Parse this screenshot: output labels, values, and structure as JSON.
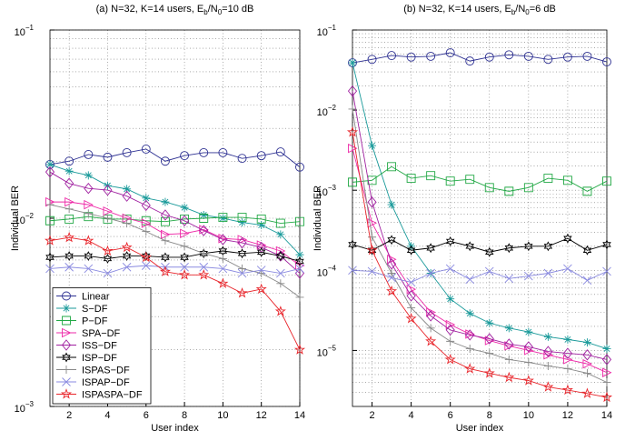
{
  "chart_data": [
    {
      "type": "line",
      "title": [
        "(a) N=32, K=14 users, E",
        "b",
        "/N",
        "0",
        "=10 dB"
      ],
      "xlabel": "User index",
      "ylabel": "Individual BER",
      "yscale": "log",
      "grid": true,
      "minor_grid": true,
      "legend": "lower left",
      "x": [
        1,
        2,
        3,
        4,
        5,
        6,
        7,
        8,
        9,
        10,
        11,
        12,
        13,
        14
      ],
      "xlim": [
        1,
        14
      ],
      "xticks": [
        2,
        4,
        6,
        8,
        10,
        12,
        14
      ],
      "ylim": [
        0.001,
        0.1
      ],
      "yticks": [
        {
          "value": 0.001,
          "label": "10",
          "exponent": "−3"
        },
        {
          "value": 0.01,
          "label": "10",
          "exponent": "−2"
        },
        {
          "value": 0.1,
          "label": "10",
          "exponent": "−1"
        }
      ],
      "series": [
        {
          "name": "Linear",
          "color": "#2e3192",
          "marker": "o",
          "values": [
            0.0193,
            0.0201,
            0.0218,
            0.0211,
            0.0223,
            0.0233,
            0.0201,
            0.0215,
            0.0223,
            0.0223,
            0.0208,
            0.0215,
            0.0225,
            0.0187
          ]
        },
        {
          "name": "S−DF",
          "color": "#1a9a9a",
          "marker": "*",
          "values": [
            0.0193,
            0.0178,
            0.0169,
            0.0149,
            0.0143,
            0.0128,
            0.0122,
            0.0114,
            0.0104,
            0.01,
            0.0095,
            0.0092,
            0.0082,
            0.0064
          ]
        },
        {
          "name": "P−DF",
          "color": "#22a845",
          "marker": "s",
          "values": [
            0.0097,
            0.0099,
            0.0102,
            0.0099,
            0.0099,
            0.0097,
            0.0096,
            0.0099,
            0.01,
            0.0101,
            0.0101,
            0.0099,
            0.0094,
            0.0096
          ]
        },
        {
          "name": "SPA−DF",
          "color": "#ee2aa8",
          "marker": ">",
          "values": [
            0.0122,
            0.0122,
            0.0118,
            0.0109,
            0.01,
            0.0094,
            0.0082,
            0.0083,
            0.0087,
            0.0078,
            0.0077,
            0.0072,
            0.0067,
            0.0056
          ]
        },
        {
          "name": "ISS−DF",
          "color": "#a020a0",
          "marker": "d",
          "values": [
            0.0176,
            0.0153,
            0.0144,
            0.0141,
            0.0131,
            0.0117,
            0.0104,
            0.0097,
            0.0086,
            0.0077,
            0.0074,
            0.007,
            0.0063,
            0.0051
          ]
        },
        {
          "name": "ISP−DF",
          "color": "#000000",
          "marker": "h",
          "values": [
            0.0062,
            0.0063,
            0.0063,
            0.0061,
            0.0063,
            0.0063,
            0.0062,
            0.0062,
            0.0065,
            0.0067,
            0.0065,
            0.0066,
            0.0063,
            0.0059
          ]
        },
        {
          "name": "ISPAS−DF",
          "color": "#888888",
          "marker": "+",
          "values": [
            0.0118,
            0.0112,
            0.0106,
            0.01,
            0.0094,
            0.0085,
            0.0076,
            0.0071,
            0.0065,
            0.0061,
            0.0054,
            0.0051,
            0.0045,
            0.0038
          ]
        },
        {
          "name": "ISPAP−DF",
          "color": "#8a8ae0",
          "marker": "x",
          "values": [
            0.0054,
            0.0055,
            0.0054,
            0.0051,
            0.0055,
            0.0056,
            0.0055,
            0.0055,
            0.0055,
            0.0054,
            0.0051,
            0.0053,
            0.0051,
            0.0054
          ]
        },
        {
          "name": "ISPASPA−DF",
          "color": "#e8242a",
          "marker": "p",
          "values": [
            0.0076,
            0.0079,
            0.0076,
            0.0067,
            0.007,
            0.0062,
            0.0052,
            0.005,
            0.005,
            0.0045,
            0.004,
            0.0042,
            0.0032,
            0.002
          ]
        }
      ]
    },
    {
      "type": "line",
      "title": [
        "(b) N=32, K=14 users, E",
        "b",
        "/N",
        "0",
        "=6 dB"
      ],
      "xlabel": "User index",
      "ylabel": "Individual BER",
      "yscale": "log",
      "grid": true,
      "minor_grid": true,
      "x": [
        1,
        2,
        3,
        4,
        5,
        6,
        7,
        8,
        9,
        10,
        11,
        12,
        13,
        14
      ],
      "xlim": [
        1,
        14
      ],
      "xticks": [
        2,
        4,
        6,
        8,
        10,
        12,
        14
      ],
      "ylim": [
        2e-06,
        0.1
      ],
      "yticks": [
        {
          "value": 1e-05,
          "label": "10",
          "exponent": "−5"
        },
        {
          "value": 0.0001,
          "label": "10",
          "exponent": "−4"
        },
        {
          "value": 0.001,
          "label": "10",
          "exponent": "−3"
        },
        {
          "value": 0.01,
          "label": "10",
          "exponent": "−2"
        },
        {
          "value": 0.1,
          "label": "10",
          "exponent": "−1"
        }
      ],
      "series": [
        {
          "color": "#2e3192",
          "marker": "o",
          "values": [
            0.039,
            0.043,
            0.048,
            0.046,
            0.047,
            0.052,
            0.041,
            0.046,
            0.049,
            0.047,
            0.043,
            0.046,
            0.047,
            0.04
          ]
        },
        {
          "color": "#1a9a9a",
          "marker": "*",
          "values": [
            0.039,
            0.0036,
            0.00066,
            0.0002,
            9.2e-05,
            4.4e-05,
            2.9e-05,
            2.2e-05,
            1.9e-05,
            1.7e-05,
            1.48e-05,
            1.37e-05,
            1.26e-05,
            1.05e-05
          ]
        },
        {
          "color": "#22a845",
          "marker": "s",
          "values": [
            0.00126,
            0.00133,
            0.00197,
            0.00141,
            0.00152,
            0.0013,
            0.00137,
            0.00108,
            0.00097,
            0.00108,
            0.00141,
            0.00133,
            0.00097,
            0.0013
          ]
        },
        {
          "color": "#ee2aa8",
          "marker": ">",
          "values": [
            0.00333,
            0.00039,
            0.000137,
            5.8e-05,
            3e-05,
            2.1e-05,
            1.6e-05,
            1.33e-05,
            1.14e-05,
            1e-05,
            8.8e-06,
            7.7e-06,
            6.8e-06,
            5.3e-06
          ]
        },
        {
          "color": "#a020a0",
          "marker": "d",
          "values": [
            0.0173,
            0.00071,
            0.00012,
            4.8e-05,
            2.7e-05,
            1.8e-05,
            1.56e-05,
            1.4e-05,
            1.2e-05,
            1.11e-05,
            9.7e-06,
            9.2e-06,
            8.8e-06,
            7.7e-06
          ]
        },
        {
          "color": "#000000",
          "marker": "h",
          "values": [
            0.00021,
            0.000178,
            0.00024,
            0.000178,
            0.00019,
            0.00023,
            0.0002,
            0.000169,
            0.00019,
            0.0002,
            0.0002,
            0.00025,
            0.000178,
            0.00021
          ]
        },
        {
          "color": "#888888",
          "marker": "+",
          "values": [
            0.0103,
            0.00026,
            9.2e-05,
            3.4e-05,
            1.9e-05,
            1.3e-05,
            1.05e-05,
            9.2e-06,
            7.7e-06,
            7.1e-06,
            6.4e-06,
            5.9e-06,
            5.2e-06,
            4e-06
          ]
        },
        {
          "color": "#8a8ae0",
          "marker": "x",
          "values": [
            0.0001,
            9.7e-05,
            8.1e-05,
            7.1e-05,
            9.2e-05,
            0.000105,
            7.7e-05,
            9.7e-05,
            7.9e-05,
            8.5e-05,
            9.2e-05,
            0.000105,
            7.5e-05,
            9.7e-05
          ]
        },
        {
          "color": "#e8242a",
          "marker": "p",
          "values": [
            0.0053,
            0.000178,
            5.5e-05,
            2.5e-05,
            1.3e-05,
            7.7e-06,
            5.9e-06,
            5.2e-06,
            4.6e-06,
            4.2e-06,
            3.5e-06,
            3.2e-06,
            2.9e-06,
            2.6e-06
          ]
        }
      ]
    }
  ]
}
